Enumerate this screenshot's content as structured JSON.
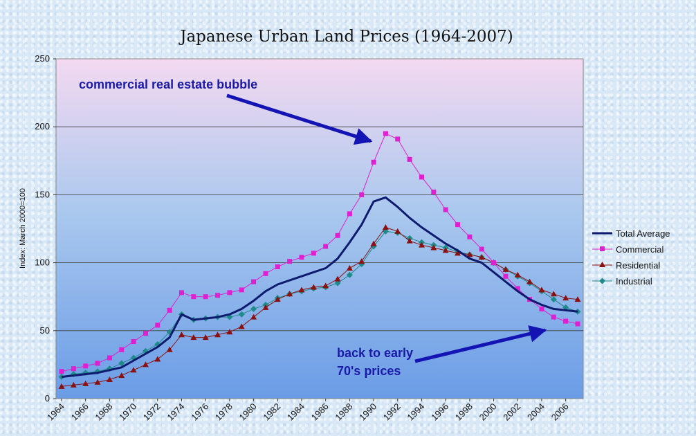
{
  "chart_data": {
    "type": "line",
    "title": "Japanese Urban Land Prices (1964-2007)",
    "ylabel": "Index: March 2000=100",
    "xlabel": "",
    "ylim": [
      0,
      250
    ],
    "yticks": [
      0,
      50,
      100,
      150,
      200,
      250
    ],
    "xlim": [
      1964,
      2007
    ],
    "xtick_labels": [
      "1964",
      "1966",
      "1968",
      "1970",
      "1972",
      "1974",
      "1976",
      "1978",
      "1980",
      "1982",
      "1984",
      "1986",
      "1988",
      "1990",
      "1992",
      "1994",
      "1996",
      "1998",
      "2000",
      "2002",
      "2004",
      "2006"
    ],
    "grid": "horizontal",
    "legend_position": "right",
    "x": [
      1964,
      1965,
      1966,
      1967,
      1968,
      1969,
      1970,
      1971,
      1972,
      1973,
      1974,
      1975,
      1976,
      1977,
      1978,
      1979,
      1980,
      1981,
      1982,
      1983,
      1984,
      1985,
      1986,
      1987,
      1988,
      1989,
      1990,
      1991,
      1992,
      1993,
      1994,
      1995,
      1996,
      1997,
      1998,
      1999,
      2000,
      2001,
      2002,
      2003,
      2004,
      2005,
      2006,
      2007
    ],
    "series": [
      {
        "name": "Total Average",
        "color": "#0d1a6e",
        "marker": "none",
        "values": [
          16,
          17,
          18,
          19,
          21,
          23,
          28,
          33,
          38,
          45,
          62,
          58,
          59,
          60,
          62,
          66,
          72,
          79,
          84,
          87,
          90,
          93,
          96,
          103,
          115,
          128,
          145,
          148,
          141,
          133,
          126,
          120,
          114,
          109,
          103,
          100,
          93,
          86,
          79,
          73,
          69,
          66,
          65,
          64
        ]
      },
      {
        "name": "Commercial",
        "color": "#e020d0",
        "marker": "square",
        "values": [
          20,
          22,
          24,
          26,
          30,
          36,
          42,
          48,
          54,
          65,
          78,
          75,
          75,
          76,
          78,
          80,
          86,
          92,
          97,
          101,
          104,
          107,
          112,
          120,
          136,
          150,
          174,
          195,
          191,
          176,
          163,
          152,
          139,
          128,
          119,
          110,
          100,
          90,
          81,
          73,
          66,
          60,
          57,
          55
        ]
      },
      {
        "name": "Residential",
        "color": "#8b1010",
        "marker": "triangle",
        "values": [
          9,
          10,
          11,
          12,
          14,
          17,
          21,
          25,
          29,
          36,
          47,
          45,
          45,
          47,
          49,
          53,
          60,
          67,
          73,
          77,
          80,
          82,
          83,
          88,
          96,
          101,
          114,
          126,
          123,
          116,
          113,
          111,
          109,
          107,
          106,
          104,
          100,
          95,
          91,
          86,
          80,
          77,
          74,
          73
        ]
      },
      {
        "name": "Industrial",
        "color": "#1f8a8a",
        "marker": "diamond",
        "values": [
          16,
          18,
          19,
          20,
          22,
          26,
          30,
          35,
          40,
          49,
          62,
          58,
          59,
          60,
          60,
          62,
          66,
          69,
          74,
          77,
          79,
          81,
          82,
          85,
          91,
          99,
          112,
          123,
          122,
          118,
          115,
          113,
          111,
          108,
          106,
          104,
          100,
          95,
          90,
          85,
          79,
          73,
          67,
          64
        ]
      }
    ],
    "annotations": [
      {
        "text_lines": [
          "commercial real estate bubble"
        ]
      },
      {
        "text_lines": [
          "back to early",
          "70's prices"
        ]
      }
    ]
  }
}
